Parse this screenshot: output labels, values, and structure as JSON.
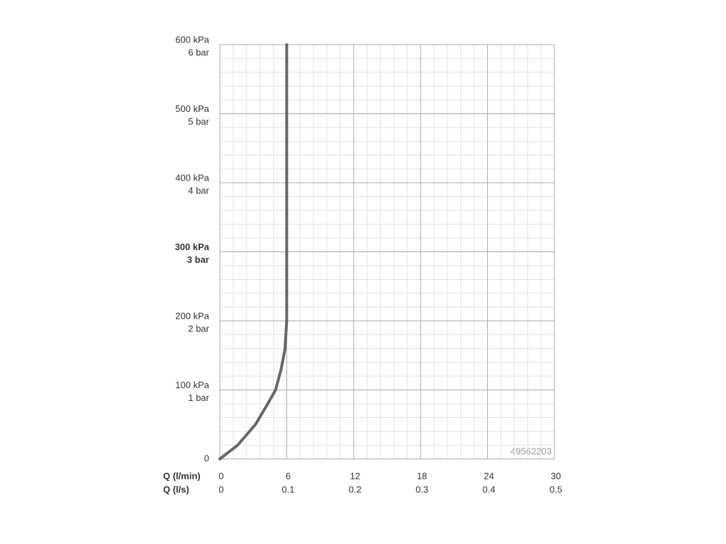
{
  "chart_data": {
    "type": "line",
    "x_axis_label": "Q (l/min)",
    "x_axis_label_secondary": "Q (l/s)",
    "x": [
      0,
      1.6,
      3.2,
      4.3,
      5.0,
      5.5,
      5.85,
      6.0,
      6.0
    ],
    "series": [
      {
        "color": "#666666",
        "values": [
          0,
          20,
          50,
          80,
          100,
          130,
          160,
          200,
          600
        ]
      }
    ],
    "xlim": [
      0,
      30
    ],
    "xticks": [
      0,
      6,
      12,
      18,
      24,
      30
    ],
    "xticks_secondary": [
      {
        "value": 0,
        "label": "0"
      },
      {
        "value": 6,
        "label": "0.1"
      },
      {
        "value": 12,
        "label": "0.2"
      },
      {
        "value": 18,
        "label": "0.3"
      },
      {
        "value": 24,
        "label": "0.4"
      },
      {
        "value": 30,
        "label": "0.5"
      }
    ],
    "ylim": [
      0,
      600
    ],
    "yticks": [
      0,
      {
        "value": 100,
        "label": "100 kPa"
      },
      {
        "value": 200,
        "label": "200 kPa"
      },
      {
        "value": 300,
        "label": "300 kPa"
      },
      {
        "value": 400,
        "label": "400 kPa"
      },
      {
        "value": 500,
        "label": "500 kPa"
      },
      {
        "value": 600,
        "label": "600 kPa"
      }
    ],
    "yticks_secondary": [
      {
        "value": 100,
        "label": "1 bar"
      },
      {
        "value": 200,
        "label": "2 bar"
      },
      {
        "value": 300,
        "label": "3 bar"
      },
      {
        "value": 400,
        "label": "4 bar"
      },
      {
        "value": 500,
        "label": "5 bar"
      },
      {
        "value": 600,
        "label": "6 bar"
      }
    ],
    "bold_ytick": 300,
    "grid": true,
    "minor_divisions": 5,
    "annotation": "49562203"
  }
}
